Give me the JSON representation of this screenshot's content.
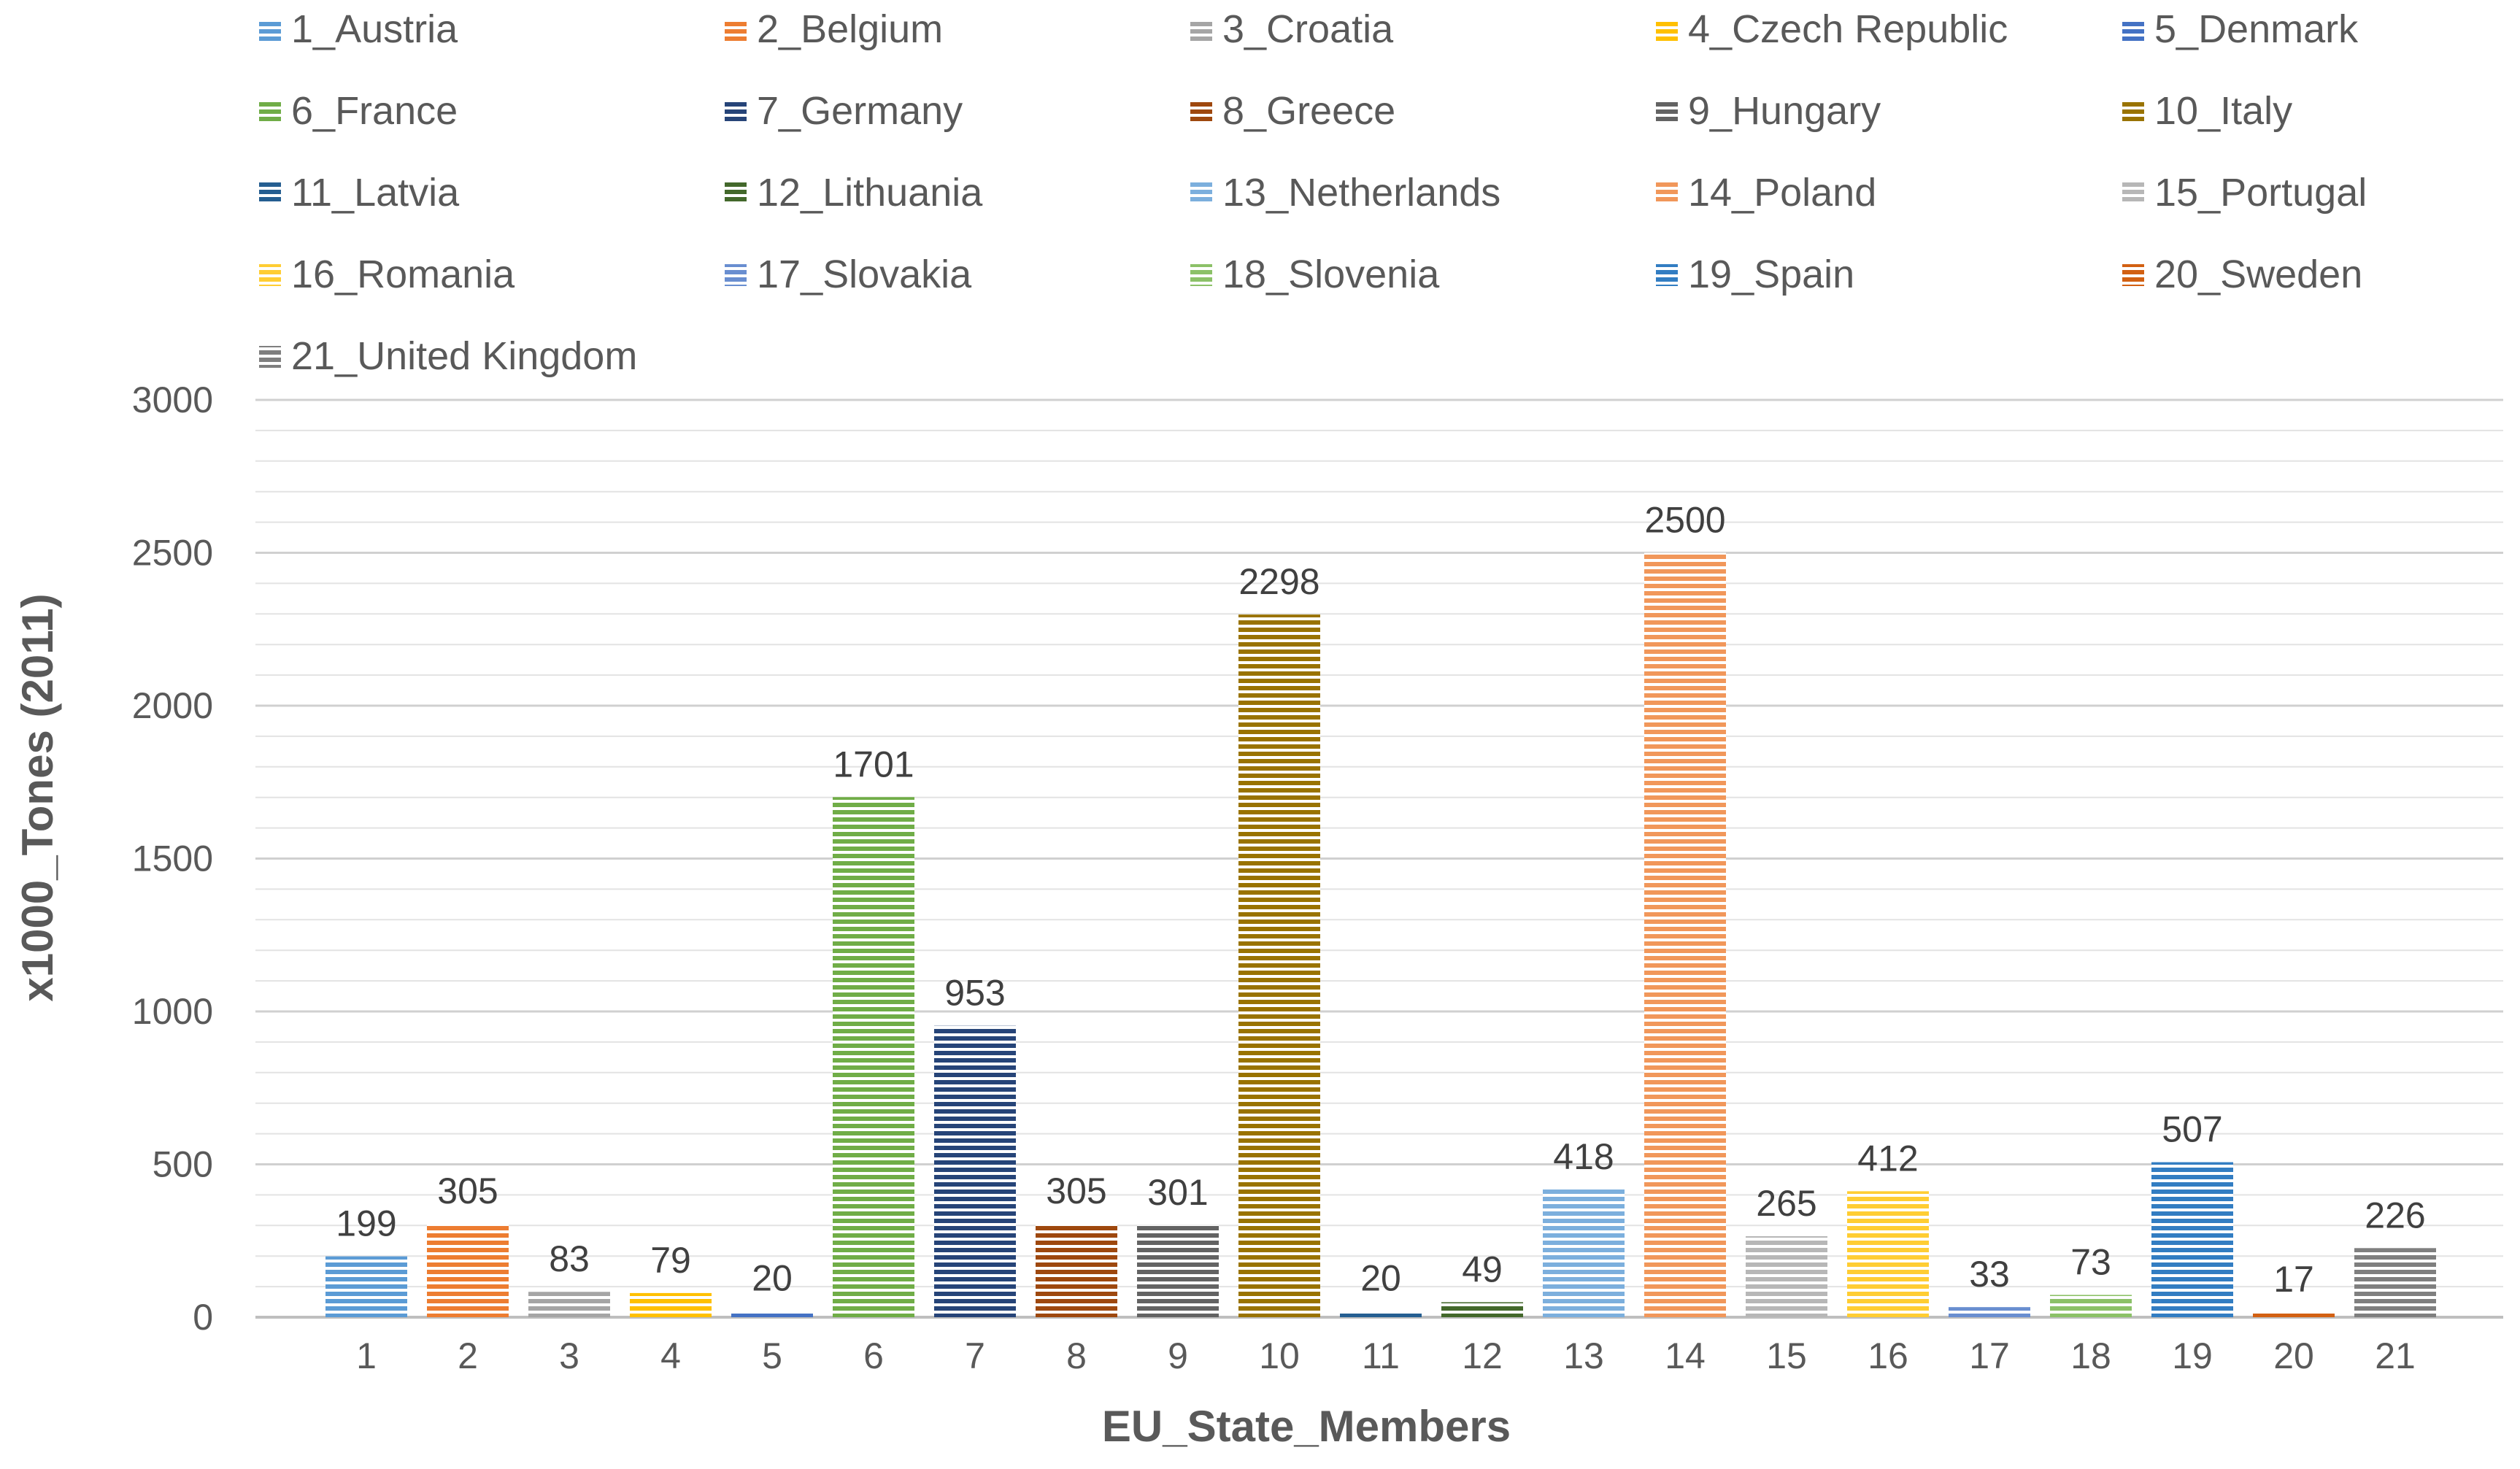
{
  "chart_data": {
    "type": "bar",
    "xlabel": "EU_State_Members",
    "ylabel": "x1000_Tones (2011)",
    "ylim": [
      0,
      3000
    ],
    "yticks": [
      0,
      500,
      1000,
      1500,
      2000,
      2500,
      3000
    ],
    "minor_gridlines": true,
    "legend_position": "top",
    "categories": [
      "1",
      "2",
      "3",
      "4",
      "5",
      "6",
      "7",
      "8",
      "9",
      "10",
      "11",
      "12",
      "13",
      "14",
      "15",
      "16",
      "17",
      "18",
      "19",
      "20",
      "21"
    ],
    "values": [
      199,
      305,
      83,
      79,
      20,
      1701,
      953,
      305,
      301,
      2298,
      20,
      49,
      418,
      2500,
      265,
      412,
      33,
      73,
      507,
      17,
      226
    ],
    "series_names": [
      "1_Austria",
      "2_Belgium",
      "3_Croatia",
      "4_Czech Republic",
      "5_Denmark",
      "6_France",
      "7_Germany",
      "8_Greece",
      "9_Hungary",
      "10_Italy",
      "11_Latvia",
      "12_Lithuania",
      "13_Netherlands",
      "14_Poland",
      "15_Portugal",
      "16_Romania",
      "17_Slovakia",
      "18_Slovenia",
      "19_Spain",
      "20_Sweden",
      "21_United Kingdom"
    ],
    "colors": [
      "#5B9BD5",
      "#ED7D31",
      "#A5A5A5",
      "#FFC000",
      "#4472C4",
      "#70AD47",
      "#264478",
      "#9E480E",
      "#636363",
      "#997300",
      "#255E91",
      "#43682B",
      "#7CAFDD",
      "#F1975A",
      "#B7B7B7",
      "#FFCD33",
      "#698ED0",
      "#8CC168",
      "#327DC2",
      "#D26012",
      "#7F7F7F"
    ]
  }
}
